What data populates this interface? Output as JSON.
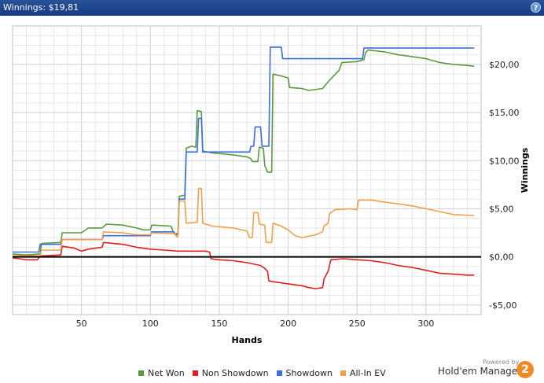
{
  "header": {
    "title": "Winnings: $19,81",
    "help_icon": "help-icon"
  },
  "chart_data": {
    "type": "line",
    "xlabel": "Hands",
    "ylabel": "Winnings",
    "xlim": [
      0,
      340
    ],
    "ylim": [
      -6,
      24
    ],
    "x_ticks": [
      50,
      100,
      150,
      200,
      250,
      300
    ],
    "y_ticks": [
      -5,
      0,
      5,
      10,
      15,
      20
    ],
    "y_tick_labels": [
      "-$5,00",
      "$0,00",
      "$5,00",
      "$10,00",
      "$15,00",
      "$20,00"
    ],
    "grid": true,
    "legend_position": "bottom",
    "zero_line": true,
    "series": [
      {
        "name": "Net Won",
        "color": "#5a9a3c",
        "points": [
          [
            0,
            0.3
          ],
          [
            10,
            0.2
          ],
          [
            20,
            0.3
          ],
          [
            21,
            1.4
          ],
          [
            35,
            1.5
          ],
          [
            36,
            2.5
          ],
          [
            50,
            2.5
          ],
          [
            55,
            3.0
          ],
          [
            65,
            3.0
          ],
          [
            68,
            3.4
          ],
          [
            80,
            3.3
          ],
          [
            90,
            3.0
          ],
          [
            95,
            2.8
          ],
          [
            100,
            2.8
          ],
          [
            101,
            3.3
          ],
          [
            115,
            3.2
          ],
          [
            116,
            2.8
          ],
          [
            118,
            2.3
          ],
          [
            120,
            2.3
          ],
          [
            121,
            6.3
          ],
          [
            125,
            6.4
          ],
          [
            126,
            11.3
          ],
          [
            130,
            11.5
          ],
          [
            133,
            11.4
          ],
          [
            134,
            15.2
          ],
          [
            137,
            15.1
          ],
          [
            138,
            11.0
          ],
          [
            145,
            10.8
          ],
          [
            160,
            10.6
          ],
          [
            170,
            10.4
          ],
          [
            173,
            10.2
          ],
          [
            174,
            9.9
          ],
          [
            178,
            9.9
          ],
          [
            179,
            11.4
          ],
          [
            182,
            11.3
          ],
          [
            183,
            9.5
          ],
          [
            185,
            8.8
          ],
          [
            188,
            8.8
          ],
          [
            189,
            19.0
          ],
          [
            195,
            18.8
          ],
          [
            200,
            18.6
          ],
          [
            201,
            17.6
          ],
          [
            210,
            17.5
          ],
          [
            215,
            17.3
          ],
          [
            225,
            17.5
          ],
          [
            229,
            18.2
          ],
          [
            233,
            18.8
          ],
          [
            237,
            19.4
          ],
          [
            239,
            20.2
          ],
          [
            250,
            20.3
          ],
          [
            255,
            20.5
          ],
          [
            256,
            21.2
          ],
          [
            258,
            21.5
          ],
          [
            270,
            21.3
          ],
          [
            280,
            21.0
          ],
          [
            290,
            20.8
          ],
          [
            300,
            20.6
          ],
          [
            310,
            20.2
          ],
          [
            320,
            20.0
          ],
          [
            330,
            19.9
          ],
          [
            335,
            19.81
          ]
        ]
      },
      {
        "name": "Non Showdown",
        "color": "#e02020",
        "points": [
          [
            0,
            -0.1
          ],
          [
            5,
            -0.2
          ],
          [
            10,
            -0.3
          ],
          [
            18,
            -0.3
          ],
          [
            20,
            0.1
          ],
          [
            35,
            0.2
          ],
          [
            36,
            1.1
          ],
          [
            45,
            0.9
          ],
          [
            50,
            0.6
          ],
          [
            55,
            0.8
          ],
          [
            60,
            0.9
          ],
          [
            65,
            1.0
          ],
          [
            66,
            1.5
          ],
          [
            80,
            1.3
          ],
          [
            90,
            1.0
          ],
          [
            100,
            0.8
          ],
          [
            110,
            0.7
          ],
          [
            120,
            0.6
          ],
          [
            130,
            0.6
          ],
          [
            140,
            0.6
          ],
          [
            143,
            0.5
          ],
          [
            144,
            -0.2
          ],
          [
            150,
            -0.3
          ],
          [
            160,
            -0.4
          ],
          [
            170,
            -0.6
          ],
          [
            180,
            -0.9
          ],
          [
            183,
            -1.2
          ],
          [
            185,
            -1.5
          ],
          [
            186,
            -2.5
          ],
          [
            190,
            -2.6
          ],
          [
            200,
            -2.8
          ],
          [
            210,
            -3.0
          ],
          [
            215,
            -3.2
          ],
          [
            220,
            -3.3
          ],
          [
            225,
            -3.2
          ],
          [
            226,
            -2.3
          ],
          [
            229,
            -1.5
          ],
          [
            231,
            -0.3
          ],
          [
            240,
            -0.2
          ],
          [
            250,
            -0.3
          ],
          [
            260,
            -0.4
          ],
          [
            270,
            -0.6
          ],
          [
            280,
            -0.9
          ],
          [
            290,
            -1.1
          ],
          [
            300,
            -1.4
          ],
          [
            310,
            -1.7
          ],
          [
            320,
            -1.8
          ],
          [
            330,
            -1.9
          ],
          [
            335,
            -1.9
          ]
        ]
      },
      {
        "name": "Showdown",
        "color": "#3b6fe0",
        "points": [
          [
            0,
            0.5
          ],
          [
            19,
            0.5
          ],
          [
            20,
            1.3
          ],
          [
            35,
            1.3
          ],
          [
            36,
            1.8
          ],
          [
            65,
            1.8
          ],
          [
            66,
            2.2
          ],
          [
            100,
            2.2
          ],
          [
            101,
            2.6
          ],
          [
            117,
            2.6
          ],
          [
            118,
            2.4
          ],
          [
            120,
            2.4
          ],
          [
            121,
            6.0
          ],
          [
            125,
            6.0
          ],
          [
            126,
            10.9
          ],
          [
            134,
            10.9
          ],
          [
            135,
            14.4
          ],
          [
            137,
            14.4
          ],
          [
            138,
            10.9
          ],
          [
            172,
            10.9
          ],
          [
            173,
            11.5
          ],
          [
            175,
            11.5
          ],
          [
            176,
            13.5
          ],
          [
            180,
            13.5
          ],
          [
            181,
            11.5
          ],
          [
            186,
            11.5
          ],
          [
            187,
            21.8
          ],
          [
            195,
            21.8
          ],
          [
            196,
            20.6
          ],
          [
            254,
            20.6
          ],
          [
            255,
            21.7
          ],
          [
            335,
            21.7
          ]
        ]
      },
      {
        "name": "All-In EV",
        "color": "#f0a14a",
        "points": [
          [
            0,
            0.1
          ],
          [
            20,
            0.1
          ],
          [
            21,
            0.7
          ],
          [
            35,
            0.7
          ],
          [
            36,
            1.8
          ],
          [
            65,
            1.8
          ],
          [
            66,
            2.6
          ],
          [
            80,
            2.5
          ],
          [
            90,
            2.3
          ],
          [
            100,
            2.3
          ],
          [
            101,
            2.5
          ],
          [
            118,
            2.4
          ],
          [
            119,
            2.1
          ],
          [
            120,
            2.1
          ],
          [
            121,
            5.8
          ],
          [
            125,
            5.8
          ],
          [
            126,
            3.5
          ],
          [
            134,
            3.6
          ],
          [
            135,
            7.1
          ],
          [
            137,
            7.1
          ],
          [
            138,
            3.5
          ],
          [
            145,
            3.2
          ],
          [
            160,
            3.0
          ],
          [
            170,
            2.7
          ],
          [
            172,
            2.0
          ],
          [
            174,
            2.0
          ],
          [
            175,
            4.6
          ],
          [
            178,
            4.6
          ],
          [
            179,
            3.4
          ],
          [
            183,
            3.3
          ],
          [
            184,
            1.5
          ],
          [
            188,
            1.5
          ],
          [
            189,
            3.5
          ],
          [
            195,
            3.2
          ],
          [
            200,
            2.8
          ],
          [
            205,
            2.2
          ],
          [
            210,
            2.0
          ],
          [
            220,
            2.3
          ],
          [
            225,
            2.6
          ],
          [
            226,
            3.2
          ],
          [
            229,
            3.5
          ],
          [
            230,
            4.5
          ],
          [
            233,
            4.8
          ],
          [
            234,
            4.9
          ],
          [
            245,
            5.0
          ],
          [
            250,
            4.9
          ],
          [
            251,
            5.9
          ],
          [
            260,
            5.9
          ],
          [
            270,
            5.7
          ],
          [
            280,
            5.5
          ],
          [
            290,
            5.3
          ],
          [
            300,
            5.0
          ],
          [
            310,
            4.7
          ],
          [
            320,
            4.4
          ],
          [
            335,
            4.3
          ]
        ]
      }
    ]
  },
  "legend": {
    "items": [
      "Net Won",
      "Non Showdown",
      "Showdown",
      "All-In EV"
    ]
  },
  "branding": {
    "powered_by": "Powered by",
    "product": "Hold'em Manager",
    "logo_text": "2"
  }
}
